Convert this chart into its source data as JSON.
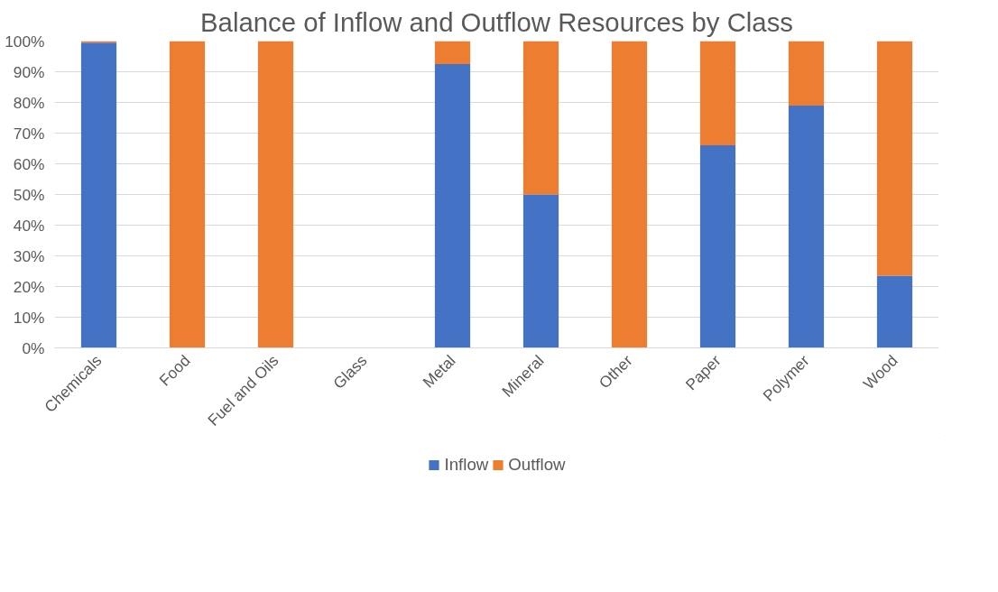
{
  "chart_data": {
    "type": "bar",
    "title": "Balance of Inflow and Outflow Resources by Class",
    "categories": [
      "Chemicals",
      "Food",
      "Fuel and Oils",
      "Glass",
      "Metal",
      "Mineral",
      "Other",
      "Paper",
      "Polymer",
      "Wood"
    ],
    "series": [
      {
        "name": "Inflow",
        "color": "#4472c4",
        "values": [
          99.5,
          0,
          0,
          null,
          92.5,
          50,
          0,
          66,
          79,
          23.5
        ]
      },
      {
        "name": "Outflow",
        "color": "#ed7d31",
        "values": [
          0.5,
          100,
          100,
          null,
          7.5,
          50,
          100,
          34,
          21,
          76.5
        ]
      }
    ],
    "stacked": true,
    "ylim": [
      0,
      100
    ],
    "yticks": [
      {
        "value": 0,
        "label": "0%"
      },
      {
        "value": 10,
        "label": "10%"
      },
      {
        "value": 20,
        "label": "20%"
      },
      {
        "value": 30,
        "label": "30%"
      },
      {
        "value": 40,
        "label": "40%"
      },
      {
        "value": 50,
        "label": "50%"
      },
      {
        "value": 60,
        "label": "60%"
      },
      {
        "value": 70,
        "label": "70%"
      },
      {
        "value": 80,
        "label": "80%"
      },
      {
        "value": 90,
        "label": "90%"
      },
      {
        "value": 100,
        "label": "100%"
      }
    ],
    "grid": "y",
    "legend": "bottom"
  }
}
